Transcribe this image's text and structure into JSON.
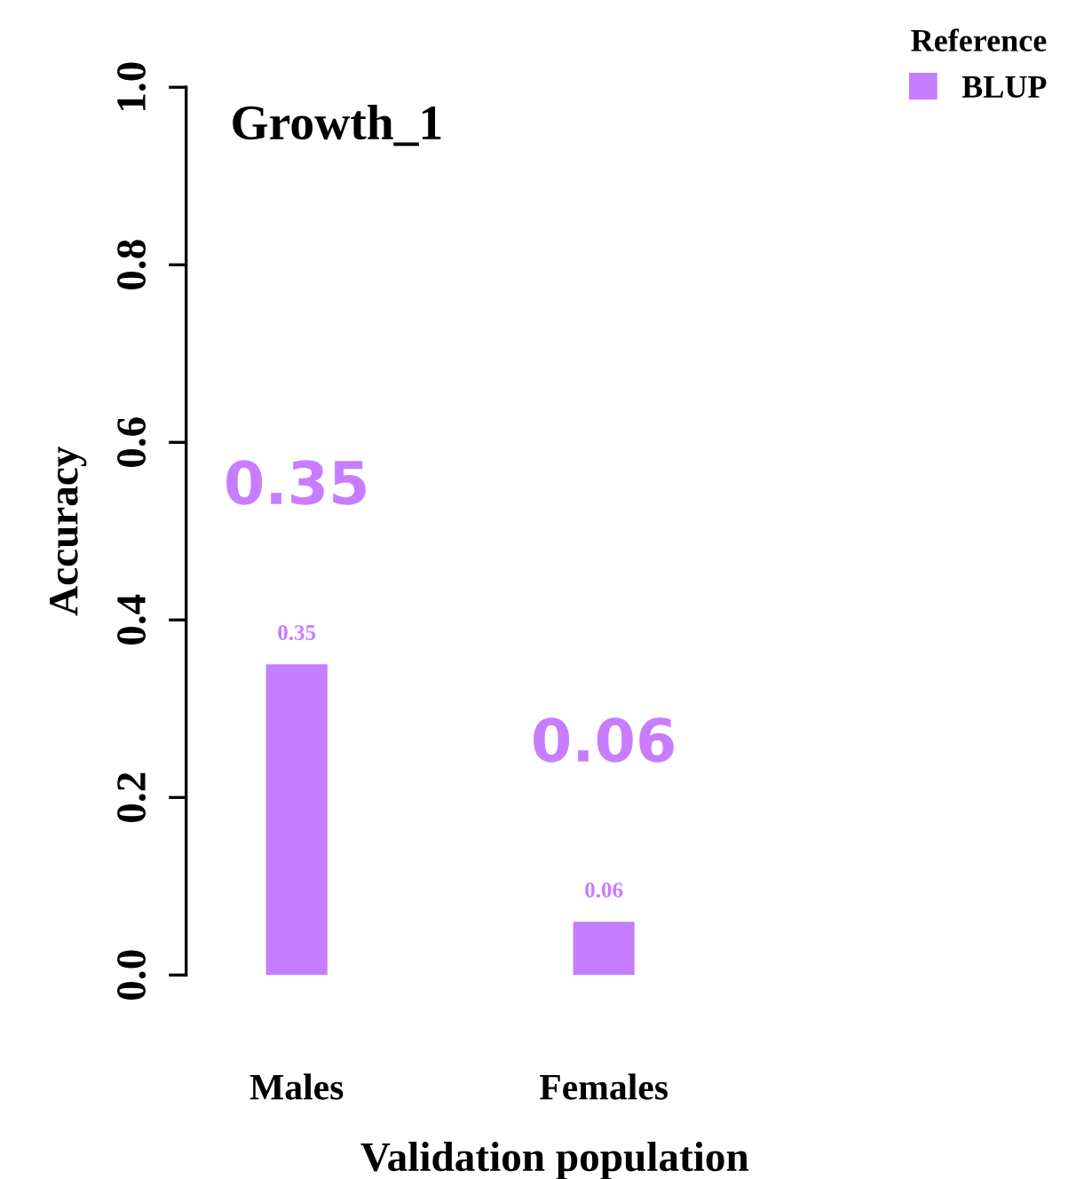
{
  "chart_data": {
    "type": "bar",
    "title": "Growth_1",
    "xlabel": "Validation population",
    "ylabel": "Accuracy",
    "legend_title": "Reference",
    "categories": [
      "Males",
      "Females"
    ],
    "series": [
      {
        "name": "BLUP",
        "color": "#c77dff",
        "values": [
          0.35,
          0.06
        ]
      }
    ],
    "data_labels": true,
    "annotations": [
      "0.35",
      "0.06"
    ],
    "ylim": [
      0,
      1
    ],
    "yticks": [
      {
        "value": 0,
        "label": "0.0"
      },
      0.2,
      0.4,
      0.6,
      0.8,
      {
        "value": 1,
        "label": "1.0"
      }
    ],
    "grid": false,
    "legend": "top right"
  }
}
